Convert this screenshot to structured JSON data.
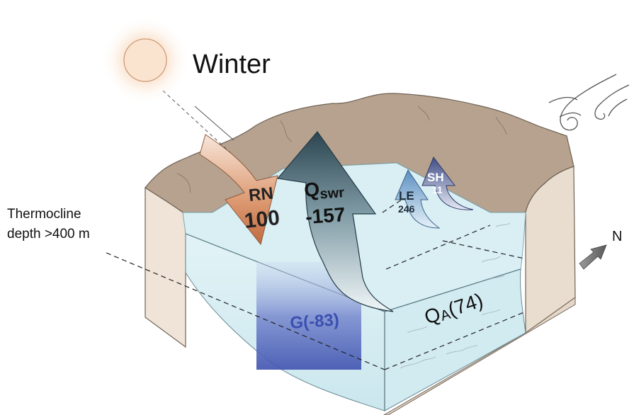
{
  "season": "Winter",
  "thermocline": {
    "line1": "Thermocline",
    "line2": "depth >400 m"
  },
  "north_label": "N",
  "fluxes": {
    "rn": {
      "name": "RN",
      "value": "100"
    },
    "qswr": {
      "name": "Q",
      "subscript": "swr",
      "value": "-157"
    },
    "le": {
      "name": "LE",
      "value": "246"
    },
    "sh": {
      "name": "SH",
      "value": "11"
    },
    "g": {
      "text": "G(-83)"
    },
    "qa": {
      "name": "Q",
      "subscript": "A",
      "value": "(74)"
    }
  },
  "colors": {
    "water": "#d8eef3",
    "water_dark": "#c4e4ec",
    "rock_top": "#b9a692",
    "rock_side": "#efe5d9",
    "rn_arrow": "#c8784f",
    "qswr_arrow": "#2f4a56",
    "le_arrow": "#5e8fc0",
    "sh_arrow": "#4c5a8f",
    "g_block": "#4a5bb5"
  },
  "icons": [
    "sun-icon",
    "wind-icon",
    "north-arrow-icon"
  ]
}
